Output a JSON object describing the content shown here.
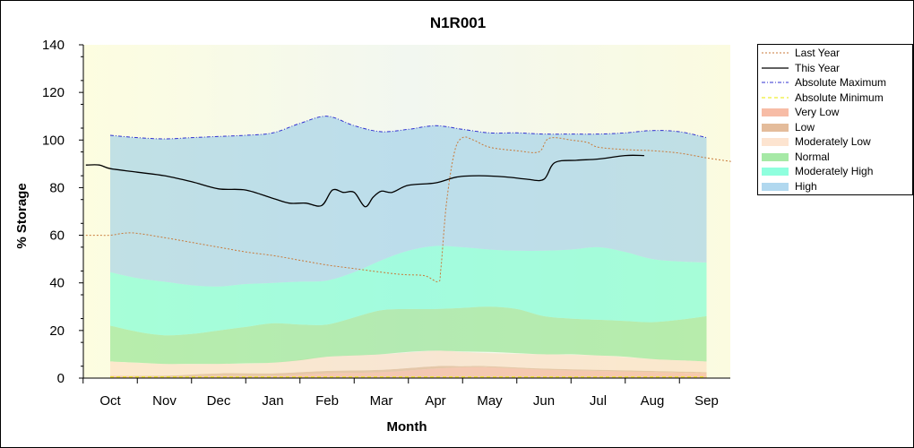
{
  "chart_data": {
    "type": "area",
    "title": "N1R001",
    "xlabel": "Month",
    "ylabel": "% Storage",
    "ylim": [
      0,
      140
    ],
    "yticks": [
      0,
      20,
      40,
      60,
      80,
      100,
      120,
      140
    ],
    "categories": [
      "Oct",
      "Nov",
      "Dec",
      "Jan",
      "Feb",
      "Mar",
      "Apr",
      "May",
      "Jun",
      "Jul",
      "Aug",
      "Sep"
    ],
    "grid": false,
    "legend_position": "right",
    "series": [
      {
        "name": "Last Year",
        "kind": "line",
        "color": "#c87a3a",
        "dash": "dotted",
        "x": [
          -0.45,
          -0.2,
          0,
          0.4,
          1,
          1.5,
          2,
          2.5,
          3,
          3.5,
          4,
          4.5,
          5,
          5.4,
          5.8,
          6.05,
          6.1,
          6.2,
          6.35,
          6.5,
          6.7,
          7,
          7.5,
          7.9,
          8.05,
          8.2,
          8.5,
          8.8,
          9,
          9.5,
          10,
          10.5,
          11,
          11.45
        ],
        "y": [
          60,
          60,
          60,
          61,
          59,
          57,
          55,
          53,
          51.5,
          49.5,
          47.5,
          46,
          44.5,
          43.5,
          43,
          40.5,
          46,
          73,
          95,
          101,
          100,
          97,
          95.5,
          95,
          100,
          101,
          100,
          99,
          97,
          96,
          95.5,
          94.5,
          92.5,
          91
        ]
      },
      {
        "name": "This Year",
        "kind": "line",
        "color": "#000000",
        "dash": "solid",
        "x": [
          -0.45,
          -0.2,
          0,
          0.5,
          1,
          1.5,
          2,
          2.5,
          3,
          3.3,
          3.6,
          3.9,
          4.1,
          4.3,
          4.5,
          4.7,
          4.85,
          5,
          5.2,
          5.5,
          6,
          6.4,
          6.8,
          7.3,
          7.7,
          8,
          8.2,
          8.6,
          9,
          9.5,
          9.85
        ],
        "y": [
          89.5,
          89.5,
          88,
          86.5,
          85,
          82.5,
          79.5,
          79,
          75.5,
          73.5,
          73.5,
          72.5,
          79,
          78,
          78,
          72,
          76,
          78.5,
          78,
          81,
          82,
          84.5,
          85,
          84.5,
          83.5,
          83.5,
          90.5,
          91.5,
          92,
          93.5,
          93.5
        ]
      },
      {
        "name": "Absolute Maximum",
        "kind": "line",
        "color": "#3030d0",
        "dash": "dashdot",
        "x": [
          0,
          0.5,
          1,
          1.5,
          2,
          2.5,
          3,
          3.5,
          4,
          4.5,
          5,
          5.5,
          6,
          6.5,
          7,
          7.5,
          8,
          8.5,
          9,
          9.5,
          10,
          10.5,
          11
        ],
        "y": [
          102,
          101,
          100.5,
          101,
          101.5,
          102,
          103,
          107,
          110,
          106,
          103.5,
          104.5,
          106,
          104.5,
          103,
          103,
          102.5,
          102.5,
          102.5,
          103,
          104,
          103.5,
          101
        ]
      },
      {
        "name": "Absolute Minimum",
        "kind": "line",
        "color": "#e8e800",
        "dash": "dashed",
        "x": [
          0,
          11
        ],
        "y": [
          0.5,
          0.5
        ]
      },
      {
        "name": "Very Low",
        "kind": "band",
        "color": "#f4a080",
        "x": [
          0,
          1,
          2,
          3,
          4,
          5,
          6,
          6.5,
          7,
          8,
          9,
          10,
          11
        ],
        "lower": [
          0,
          0,
          0,
          0,
          0,
          0,
          0,
          0,
          0,
          0,
          0,
          0,
          0
        ],
        "upper": [
          1,
          0.5,
          1,
          1,
          2,
          2.5,
          4,
          4.5,
          4.5,
          3.5,
          3,
          2.5,
          2
        ]
      },
      {
        "name": "Low",
        "kind": "band",
        "color": "#d8a070",
        "x": [
          0,
          1,
          2,
          3,
          4,
          5,
          6,
          6.5,
          7,
          8,
          9,
          10,
          11
        ],
        "lower": [
          1,
          0.5,
          1,
          1,
          2,
          2.5,
          4,
          4.5,
          4.5,
          3.5,
          3,
          2.5,
          2
        ],
        "upper": [
          1,
          1,
          2,
          2,
          3,
          3.5,
          5,
          5,
          5,
          4,
          3.5,
          3,
          2.5
        ]
      },
      {
        "name": "Moderately Low",
        "kind": "band",
        "color": "#fcd8bc",
        "x": [
          0,
          1,
          2,
          3,
          4,
          5,
          6,
          6.5,
          7,
          8,
          9,
          10,
          11
        ],
        "lower": [
          1,
          1,
          2,
          2,
          3,
          3.5,
          5,
          5,
          5,
          4,
          3.5,
          3,
          2.5
        ],
        "upper": [
          7,
          6,
          6,
          6.5,
          9,
          10,
          11.5,
          11,
          10.5,
          10,
          9.5,
          8,
          7
        ]
      },
      {
        "name": "Normal",
        "kind": "band",
        "color": "#80e080",
        "x": [
          0,
          0.5,
          1,
          1.5,
          2,
          2.5,
          3,
          3.5,
          4,
          4.5,
          5,
          5.5,
          6,
          6.5,
          7,
          7.5,
          8,
          8.5,
          9,
          9.5,
          10,
          10.5,
          11
        ],
        "lower": [
          7,
          6.5,
          6,
          6,
          6,
          6.2,
          6.5,
          7.5,
          9,
          9.5,
          10,
          11,
          11.5,
          11.2,
          11,
          10.5,
          10,
          10,
          9.5,
          9,
          8,
          7.5,
          7
        ],
        "upper": [
          22,
          19.5,
          18,
          18.5,
          20,
          21.5,
          23,
          22.5,
          22.5,
          25.5,
          28.5,
          29,
          29,
          29.5,
          30,
          29,
          26,
          25,
          24.5,
          24,
          23.5,
          24.5,
          26
        ]
      },
      {
        "name": "Moderately High",
        "kind": "band",
        "color": "#60ffd0",
        "x": [
          0,
          0.5,
          1,
          1.5,
          2,
          2.5,
          3,
          3.5,
          4,
          4.5,
          5,
          5.5,
          6,
          6.5,
          7,
          7.5,
          8,
          8.5,
          9,
          9.5,
          10,
          10.5,
          11
        ],
        "lower": [
          22,
          19.5,
          18,
          18.5,
          20,
          21.5,
          23,
          22.5,
          22.5,
          25.5,
          28.5,
          29,
          29,
          29.5,
          30,
          29,
          26,
          25,
          24.5,
          24,
          23.5,
          24.5,
          26
        ],
        "upper": [
          44.5,
          42,
          40.5,
          39,
          38.5,
          39.5,
          40,
          40.5,
          41,
          44.5,
          49.5,
          53.5,
          55.5,
          55,
          54,
          53.5,
          53.5,
          54,
          55,
          53,
          50,
          49,
          48.5
        ]
      },
      {
        "name": "High",
        "kind": "band",
        "color": "#90c8e8",
        "x": [
          0,
          0.5,
          1,
          1.5,
          2,
          2.5,
          3,
          3.5,
          4,
          4.5,
          5,
          5.5,
          6,
          6.5,
          7,
          7.5,
          8,
          8.5,
          9,
          9.5,
          10,
          10.5,
          11
        ],
        "lower": [
          44.5,
          42,
          40.5,
          39,
          38.5,
          39.5,
          40,
          40.5,
          41,
          44.5,
          49.5,
          53.5,
          55.5,
          55,
          54,
          53.5,
          53.5,
          54,
          55,
          53,
          50,
          49,
          48.5
        ],
        "upper": [
          102,
          101,
          100.5,
          101,
          101.5,
          102,
          103,
          107,
          110,
          106,
          103.5,
          104.5,
          106,
          104.5,
          103,
          103,
          102.5,
          102.5,
          102.5,
          103,
          104,
          103.5,
          101
        ]
      }
    ]
  }
}
